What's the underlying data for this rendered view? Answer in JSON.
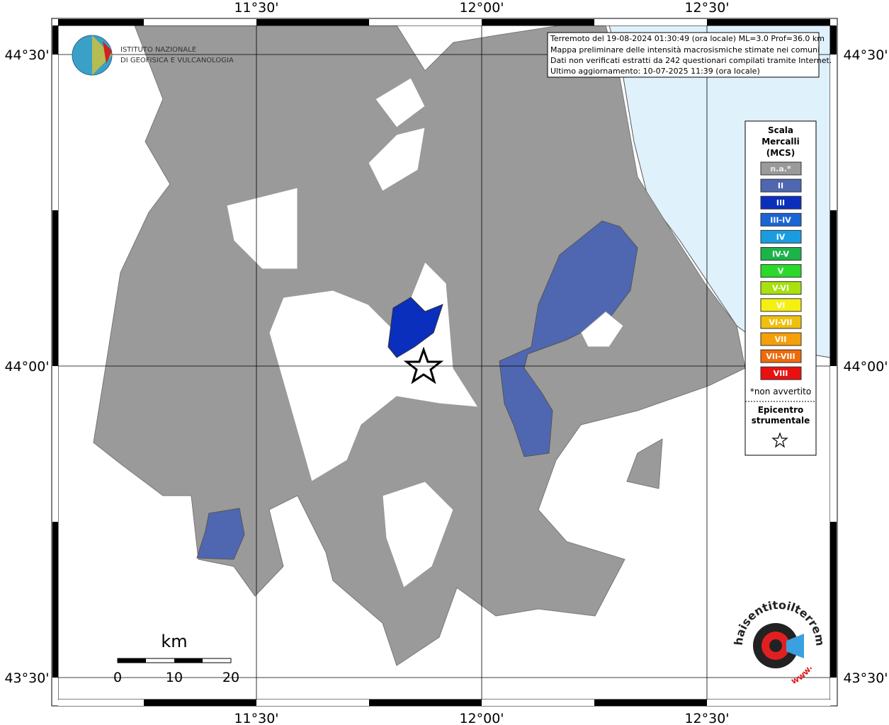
{
  "header": {
    "lines": [
      "Terremoto del 19-08-2024 01:30:49 (ora locale) ML=3.0 Prof=36.0 km",
      "Mappa preliminare delle intensità macrosismiche stimate nei comuni",
      "Dati non verificati estratti da 242 questionari compilati tramite Internet.",
      "Ultimo aggiornamento: 10-07-2025 11:39 (ora locale)"
    ]
  },
  "axes": {
    "top_labels": [
      "11°30'",
      "12°00'",
      "12°30'"
    ],
    "bottom_labels": [
      "11°30'",
      "12°00'",
      "12°30'"
    ],
    "left_labels": [
      "44°30'",
      "44°00'",
      "43°30'"
    ],
    "right_labels": [
      "44°30'",
      "44°00'",
      "43°30'"
    ]
  },
  "logo": {
    "lines": [
      "ISTITUTO NAZIONALE",
      "DI GEOFISICA E VULCANOLOGIA"
    ]
  },
  "legend": {
    "title": [
      "Scala",
      "Mercalli",
      "(MCS)"
    ],
    "items": [
      {
        "label": "n.a.*",
        "color": "#9a9a9a"
      },
      {
        "label": "II",
        "color": "#4f67b0"
      },
      {
        "label": "III",
        "color": "#0a2fbd"
      },
      {
        "label": "III-IV",
        "color": "#1a64d6"
      },
      {
        "label": "IV",
        "color": "#1a9de0"
      },
      {
        "label": "IV-V",
        "color": "#1cb34a"
      },
      {
        "label": "V",
        "color": "#2bd92b"
      },
      {
        "label": "V-VI",
        "color": "#a8e010"
      },
      {
        "label": "VI",
        "color": "#f5f00f"
      },
      {
        "label": "VI-VII",
        "color": "#f0c010"
      },
      {
        "label": "VII",
        "color": "#f5a00a"
      },
      {
        "label": "VII-VIII",
        "color": "#f06a0a"
      },
      {
        "label": "VIII",
        "color": "#e81010"
      }
    ],
    "note": "*non avvertito",
    "epicenter_title": [
      "Epicentro",
      "strumentale"
    ]
  },
  "scale_bar": {
    "unit": "km",
    "ticks": [
      0,
      10,
      20
    ]
  },
  "badge": {
    "text": "haisentitoilterremoto.it",
    "prefix": "www."
  }
}
